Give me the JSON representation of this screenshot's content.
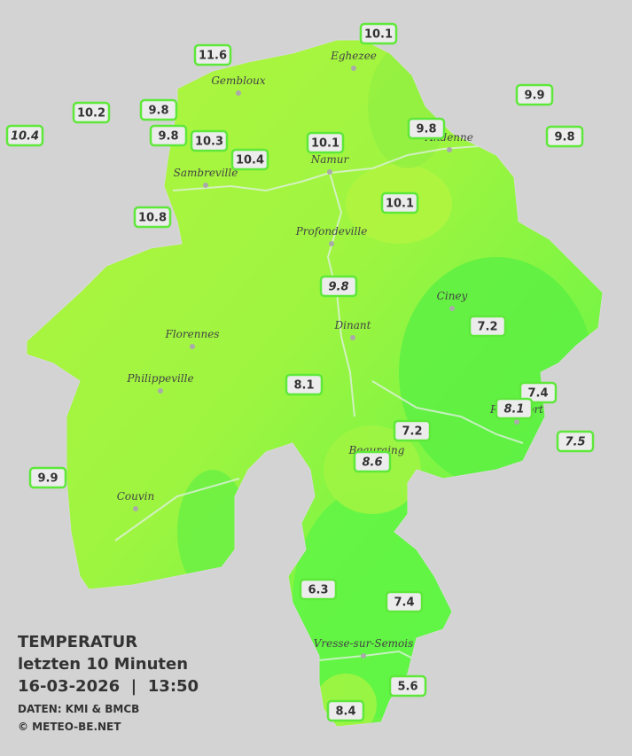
{
  "legend": {
    "title": "TEMPERATUR",
    "subtitle": "letzten 10 Minuten",
    "datetime": "16-03-2026  |  13:50",
    "source": "DATEN: KMI & BMCB",
    "copyright": "© METEO-BE.NET"
  },
  "cities": [
    "Eghezee",
    "Gembloux",
    "Andenne",
    "Namur",
    "Sambreville",
    "Profondeville",
    "Ciney",
    "Dinant",
    "Florennes",
    "Philippeville",
    "Rochefort",
    "Beauraing",
    "Couvin",
    "Vresse-sur-Semois"
  ],
  "stations": [
    {
      "value": 10.1
    },
    {
      "value": 11.6
    },
    {
      "value": 9.9
    },
    {
      "value": 10.2
    },
    {
      "value": 9.8
    },
    {
      "value": 10.4,
      "italic": true
    },
    {
      "value": 9.8
    },
    {
      "value": 10.3
    },
    {
      "value": 10.1
    },
    {
      "value": 9.8
    },
    {
      "value": 9.8
    },
    {
      "value": 10.4
    },
    {
      "value": 10.1
    },
    {
      "value": 10.8
    },
    {
      "value": 9.8,
      "italic": true
    },
    {
      "value": 7.2
    },
    {
      "value": 8.1
    },
    {
      "value": 7.4
    },
    {
      "value": 8.1,
      "italic": true
    },
    {
      "value": 7.2
    },
    {
      "value": 7.5,
      "italic": true
    },
    {
      "value": 8.6,
      "italic": true
    },
    {
      "value": 9.9
    },
    {
      "value": 6.3
    },
    {
      "value": 7.4
    },
    {
      "value": 5.6
    },
    {
      "value": 8.4
    }
  ]
}
